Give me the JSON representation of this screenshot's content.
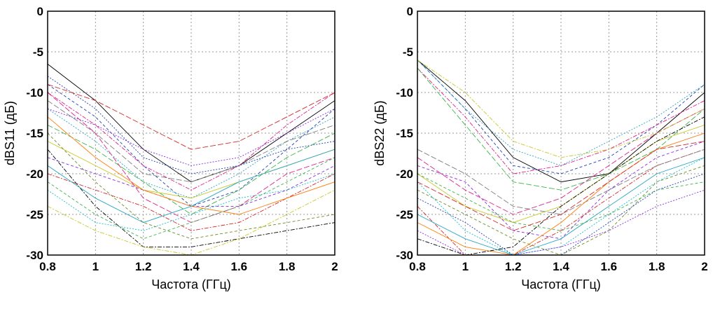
{
  "charts": [
    {
      "id": "s11",
      "ylabel": "dBS11 (дБ)",
      "xlabel": "Частота (ГГц)",
      "xlim": [
        0.8,
        2
      ],
      "ylim": [
        -30,
        0
      ],
      "xticks": [
        "0.8",
        "1",
        "1.2",
        "1.4",
        "1.6",
        "1.8",
        "2"
      ],
      "yticks": [
        "0",
        "-5",
        "-10",
        "-15",
        "-20",
        "-25",
        "-30"
      ]
    },
    {
      "id": "s22",
      "ylabel": "dBS22 (дБ)",
      "xlabel": "Частота (ГГц)",
      "xlim": [
        0.8,
        2
      ],
      "ylim": [
        -30,
        0
      ],
      "xticks": [
        "0.8",
        "1",
        "1.2",
        "1.4",
        "1.6",
        "1.8",
        "2"
      ],
      "yticks": [
        "0",
        "-5",
        "-10",
        "-15",
        "-20",
        "-25",
        "-30"
      ]
    }
  ],
  "palette": [
    "#000000",
    "#1f3fb5",
    "#e0208a",
    "#2aa6c4",
    "#3cb44b",
    "#c8c828",
    "#8a2be2",
    "#d62728",
    "#17becf",
    "#7f7f7f",
    "#ff7f0e",
    "#6b8e23"
  ],
  "chart_data": [
    {
      "type": "line",
      "title": "",
      "xlabel": "Частота (ГГц)",
      "ylabel": "dBS11 (дБ)",
      "xlim": [
        0.8,
        2
      ],
      "ylim": [
        -30,
        0
      ],
      "grid": true,
      "x": [
        0.8,
        1.0,
        1.2,
        1.4,
        1.6,
        1.8,
        2.0
      ],
      "series": [
        {
          "values": [
            -6.5,
            -11,
            -17,
            -21,
            -19,
            -15,
            -11
          ]
        },
        {
          "values": [
            -9,
            -13,
            -19,
            -24,
            -22,
            -17,
            -12
          ]
        },
        {
          "values": [
            -10,
            -14,
            -19,
            -22,
            -19,
            -14,
            -10
          ]
        },
        {
          "values": [
            -12,
            -16,
            -21,
            -23,
            -20,
            -16,
            -13
          ]
        },
        {
          "values": [
            -14,
            -17,
            -21,
            -25,
            -22,
            -18,
            -15
          ]
        },
        {
          "values": [
            -16,
            -19,
            -22,
            -23,
            -21,
            -19,
            -17
          ]
        },
        {
          "values": [
            -18,
            -20,
            -22,
            -24,
            -24,
            -22,
            -19
          ]
        },
        {
          "values": [
            -20,
            -22,
            -24,
            -27,
            -26,
            -23,
            -20
          ]
        },
        {
          "values": [
            -22,
            -26,
            -27,
            -25,
            -23,
            -22,
            -20
          ]
        },
        {
          "values": [
            -11,
            -15,
            -20,
            -21,
            -19,
            -16,
            -14
          ]
        },
        {
          "values": [
            -13,
            -18,
            -22,
            -24,
            -25,
            -23,
            -21
          ]
        },
        {
          "values": [
            -15,
            -21,
            -26,
            -28,
            -27,
            -26,
            -25
          ]
        },
        {
          "values": [
            -17,
            -24,
            -29,
            -29,
            -28,
            -27,
            -26
          ]
        },
        {
          "values": [
            -8,
            -12,
            -18,
            -20,
            -19,
            -17,
            -16
          ]
        },
        {
          "values": [
            -10,
            -15,
            -23,
            -26,
            -24,
            -20,
            -18
          ]
        },
        {
          "values": [
            -19,
            -23,
            -26,
            -24,
            -21,
            -19,
            -17
          ]
        },
        {
          "values": [
            -21,
            -25,
            -28,
            -26,
            -24,
            -21,
            -18
          ]
        },
        {
          "values": [
            -24,
            -27,
            -29,
            -30,
            -28,
            -25,
            -22
          ]
        },
        {
          "values": [
            -12,
            -14,
            -17,
            -19,
            -18,
            -15,
            -12
          ]
        },
        {
          "values": [
            -9,
            -11,
            -14,
            -17,
            -16,
            -13,
            -10
          ]
        }
      ]
    },
    {
      "type": "line",
      "title": "",
      "xlabel": "Частота (ГГц)",
      "ylabel": "dBS22 (дБ)",
      "xlim": [
        0.8,
        2
      ],
      "ylim": [
        -30,
        0
      ],
      "grid": true,
      "x": [
        0.8,
        1.0,
        1.2,
        1.4,
        1.6,
        1.8,
        2.0
      ],
      "series": [
        {
          "values": [
            -6,
            -11,
            -18,
            -21,
            -20,
            -15,
            -10
          ]
        },
        {
          "values": [
            -6,
            -12,
            -19,
            -20,
            -18,
            -14,
            -9
          ]
        },
        {
          "values": [
            -7,
            -13,
            -20,
            -19,
            -17,
            -14,
            -11
          ]
        },
        {
          "values": [
            -6,
            -12,
            -17,
            -19,
            -16,
            -13,
            -9
          ]
        },
        {
          "values": [
            -7,
            -14,
            -21,
            -22,
            -20,
            -17,
            -12
          ]
        },
        {
          "values": [
            -20,
            -24,
            -26,
            -24,
            -20,
            -16,
            -14
          ]
        },
        {
          "values": [
            -19,
            -21,
            -27,
            -28,
            -22,
            -18,
            -16
          ]
        },
        {
          "values": [
            -24,
            -30,
            -30,
            -27,
            -23,
            -19,
            -17
          ]
        },
        {
          "values": [
            -21,
            -27,
            -30,
            -29,
            -25,
            -21,
            -18
          ]
        },
        {
          "values": [
            -17,
            -20,
            -24,
            -25,
            -22,
            -19,
            -17
          ]
        },
        {
          "values": [
            -26,
            -29,
            -30,
            -26,
            -21,
            -17,
            -15
          ]
        },
        {
          "values": [
            -22,
            -25,
            -28,
            -30,
            -27,
            -21,
            -19
          ]
        },
        {
          "values": [
            -28,
            -30,
            -29,
            -24,
            -20,
            -16,
            -13
          ]
        },
        {
          "values": [
            -23,
            -26,
            -30,
            -30,
            -26,
            -22,
            -20
          ]
        },
        {
          "values": [
            -18,
            -22,
            -25,
            -23,
            -19,
            -15,
            -12
          ]
        },
        {
          "values": [
            -25,
            -28,
            -30,
            -28,
            -24,
            -20,
            -18
          ]
        },
        {
          "values": [
            -20,
            -23,
            -26,
            -27,
            -25,
            -22,
            -21
          ]
        },
        {
          "values": [
            -6,
            -10,
            -16,
            -18,
            -17,
            -15,
            -12
          ]
        },
        {
          "values": [
            -27,
            -30,
            -30,
            -29,
            -27,
            -24,
            -22
          ]
        },
        {
          "values": [
            -21,
            -24,
            -27,
            -25,
            -21,
            -17,
            -16
          ]
        }
      ]
    }
  ]
}
